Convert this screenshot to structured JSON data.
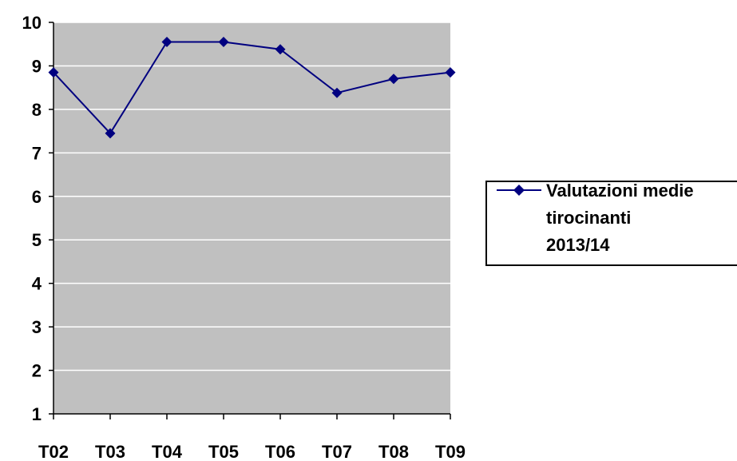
{
  "chart_data": {
    "type": "line",
    "title": "",
    "xlabel": "",
    "ylabel": "",
    "categories": [
      "T02",
      "T03",
      "T04",
      "T05",
      "T06",
      "T07",
      "T08",
      "T09"
    ],
    "series": [
      {
        "name_lines": [
          "Valutazioni medie",
          "tirocinanti",
          "2013/14"
        ],
        "values": [
          8.85,
          7.45,
          9.55,
          9.55,
          9.38,
          8.38,
          8.7,
          8.85
        ],
        "color": "#000080",
        "marker": "diamond"
      }
    ],
    "ylim": [
      1,
      10
    ],
    "y_ticks": [
      1,
      2,
      3,
      4,
      5,
      6,
      7,
      8,
      9,
      10
    ],
    "grid": true,
    "plot_background": "#c0c0c0",
    "gridline_color": "#ffffff",
    "legend_position": "right"
  }
}
